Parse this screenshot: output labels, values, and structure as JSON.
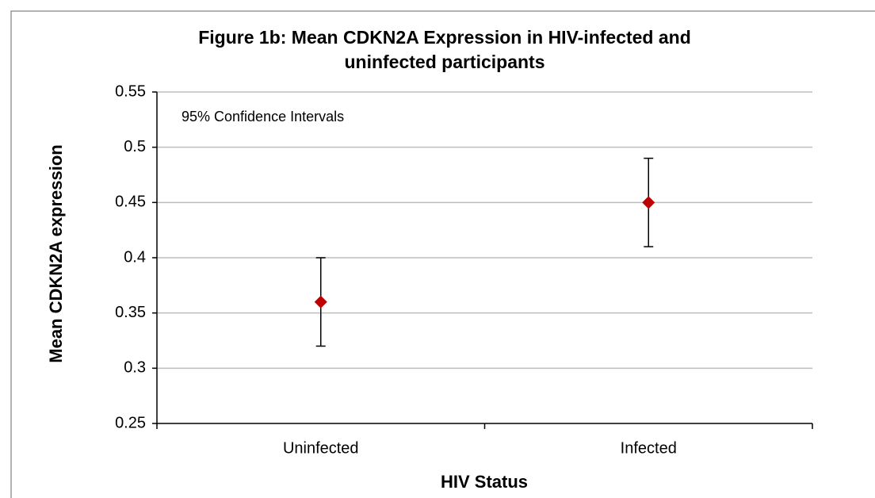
{
  "chart_data": {
    "type": "errorbar",
    "title": [
      "Figure 1b: Mean CDKN2A Expression in HIV-infected and",
      "uninfected participants"
    ],
    "annotation": "95% Confidence Intervals",
    "xlabel": "HIV Status",
    "ylabel": "Mean CDKN2A expression",
    "categories": [
      "Uninfected",
      "Infected"
    ],
    "values": [
      0.36,
      0.45
    ],
    "errors": [
      0.04,
      0.04
    ],
    "color": "#c00000",
    "ylim": [
      0.25,
      0.55
    ],
    "yticks": [
      0.25,
      0.3,
      0.35,
      0.4,
      0.45,
      0.5,
      0.55
    ],
    "grid": true
  }
}
